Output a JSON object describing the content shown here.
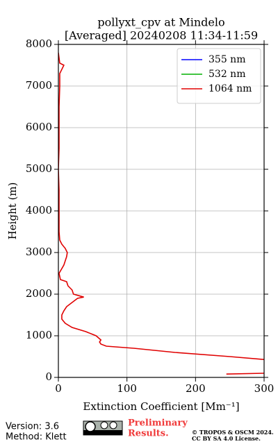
{
  "chart_data": {
    "type": "line",
    "title": "pollyxt_cpv at Mindelo",
    "subtitle": "[Averaged] 20240208 11:34-11:59",
    "xlabel": "Extinction Coefficient [Mm⁻¹]",
    "ylabel": "Height (m)",
    "y": [
      80,
      100,
      250,
      430,
      500,
      600,
      700,
      750,
      800,
      850,
      900,
      1000,
      1100,
      1200,
      1300,
      1400,
      1500,
      1600,
      1700,
      1800,
      1900,
      1930,
      2000,
      2100,
      2200,
      2300,
      2350,
      2500,
      2700,
      2800,
      2900,
      3000,
      3100,
      3200,
      3300,
      3500,
      4000,
      4500,
      5000,
      5500,
      6000,
      6500,
      7000,
      7300,
      7500,
      7550,
      7800
    ],
    "series": [
      {
        "name": "355 nm",
        "color": "#0000ff",
        "values": [
          null,
          null,
          null,
          null,
          null,
          null,
          null,
          null,
          null,
          null,
          null,
          null,
          null,
          null,
          null,
          null,
          null,
          null,
          null,
          null,
          null,
          null,
          null,
          null,
          null,
          null,
          null,
          null,
          null,
          null,
          null,
          null,
          null,
          null,
          null,
          null,
          null,
          null,
          null,
          null,
          null,
          null,
          null,
          null,
          null,
          null,
          null
        ]
      },
      {
        "name": "532 nm",
        "color": "#00b000",
        "values": [
          null,
          null,
          null,
          null,
          null,
          null,
          null,
          null,
          null,
          null,
          null,
          null,
          null,
          null,
          null,
          null,
          null,
          null,
          null,
          null,
          null,
          null,
          null,
          null,
          null,
          null,
          null,
          null,
          null,
          null,
          null,
          null,
          null,
          null,
          null,
          null,
          null,
          null,
          null,
          null,
          null,
          null,
          null,
          null,
          null,
          null,
          null
        ]
      },
      {
        "name": "1064 nm",
        "color": "#e00000",
        "values": [
          245,
          300,
          null,
          300,
          250,
          170,
          110,
          70,
          62,
          60,
          62,
          55,
          40,
          20,
          10,
          5,
          5,
          8,
          12,
          20,
          28,
          37,
          22,
          20,
          14,
          12,
          3,
          1,
          8,
          10,
          12,
          13,
          10,
          5,
          2,
          1,
          1,
          1,
          0,
          1,
          1,
          1,
          2,
          2,
          8,
          2,
          0
        ]
      }
    ],
    "xlim": [
      0,
      300
    ],
    "xticks": [
      0,
      100,
      200,
      300
    ],
    "ylim": [
      0,
      8000
    ],
    "yticks": [
      0,
      1000,
      2000,
      3000,
      4000,
      5000,
      6000,
      7000,
      8000
    ],
    "grid": true,
    "legend": "upper right",
    "footer": {
      "version": "Version: 3.6",
      "method": "Method: Klett",
      "status": [
        "Preliminary",
        "Results."
      ],
      "copyright": [
        "© TROPOS & OSCM 2024.",
        "CC BY SA 4.0 License."
      ]
    }
  }
}
